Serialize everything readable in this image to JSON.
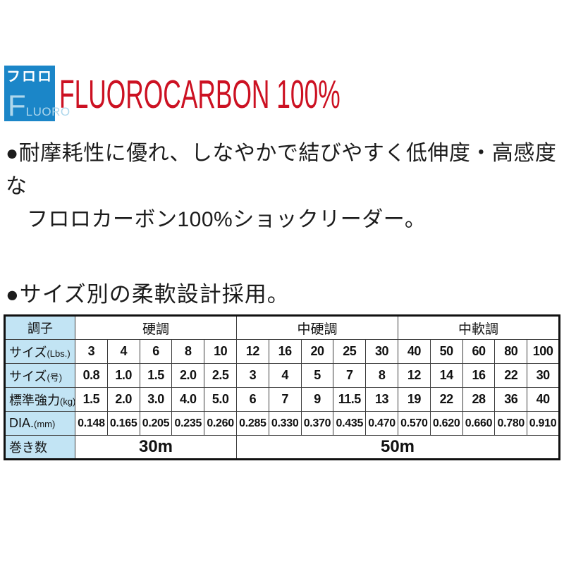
{
  "colors": {
    "logo_blue": "#1b86c8",
    "logo_text_light_blue": "#aed7ec",
    "title_red": "#cc1122",
    "table_label_bg": "#c2e4f4"
  },
  "logo": {
    "katakana": "フロロ",
    "f_large": "F",
    "rest": "LUORO"
  },
  "title": {
    "text": "FLUOROCARBON 100%"
  },
  "description": {
    "line1": "●耐摩耗性に優れ、しなやかで結びやすく低伸度・高感度な",
    "line2": "フロロカーボン100%ショックリーダー。"
  },
  "section_heading": {
    "text": "●サイズ別の柔軟設計採用。"
  },
  "spec_table": {
    "corner_label": "調子",
    "groups": [
      {
        "label": "硬調",
        "span": 5
      },
      {
        "label": "中硬調",
        "span": 5
      },
      {
        "label": "中軟調",
        "span": 5
      }
    ],
    "rows": [
      {
        "label": "サイズ",
        "unit": "(Lbs.)",
        "values": [
          "3",
          "4",
          "6",
          "8",
          "10",
          "12",
          "16",
          "20",
          "25",
          "30",
          "40",
          "50",
          "60",
          "80",
          "100"
        ]
      },
      {
        "label": "サイズ",
        "unit": "(号)",
        "values": [
          "0.8",
          "1.0",
          "1.5",
          "2.0",
          "2.5",
          "3",
          "4",
          "5",
          "7",
          "8",
          "12",
          "14",
          "16",
          "22",
          "30"
        ]
      },
      {
        "label": "標準強力",
        "unit": "(kg)",
        "values": [
          "1.5",
          "2.0",
          "3.0",
          "4.0",
          "5.0",
          "6",
          "7",
          "9",
          "11.5",
          "13",
          "19",
          "22",
          "28",
          "36",
          "40"
        ]
      },
      {
        "label": "DIA.",
        "unit": "(mm)",
        "values": [
          "0.148",
          "0.165",
          "0.205",
          "0.235",
          "0.260",
          "0.285",
          "0.330",
          "0.370",
          "0.435",
          "0.470",
          "0.570",
          "0.620",
          "0.660",
          "0.780",
          "0.910"
        ]
      }
    ],
    "length_row": {
      "label": "巻き数",
      "spans": [
        {
          "text": "30m",
          "span": 5
        },
        {
          "text": "50m",
          "span": 10
        }
      ]
    }
  }
}
